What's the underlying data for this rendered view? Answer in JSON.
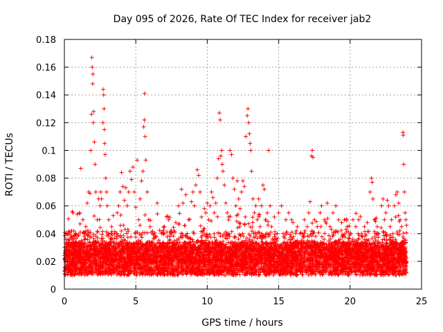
{
  "chart_data": {
    "type": "scatter",
    "title": "Day 095 of 2026, Rate Of TEC Index for receiver jab2",
    "xlabel": "GPS time / hours",
    "ylabel": "ROTI / TECUs",
    "xlim": [
      0,
      25
    ],
    "ylim": [
      0,
      0.18
    ],
    "xticks": [
      "0",
      "5",
      "10",
      "15",
      "20",
      "25"
    ],
    "yticks": [
      "0",
      "0.02",
      "0.04",
      "0.06",
      "0.08",
      "0.1",
      "0.12",
      "0.14",
      "0.16",
      "0.18"
    ],
    "grid": true,
    "marker": "+",
    "marker_color": "#ff0000",
    "legend": "none",
    "series": [
      {
        "points": [
          [
            0.05,
            0.021
          ],
          [
            0.1,
            0.036
          ],
          [
            0.15,
            0.028
          ],
          [
            0.2,
            0.03
          ],
          [
            0.3,
            0.027
          ],
          [
            0.4,
            0.025
          ],
          [
            0.5,
            0.03
          ],
          [
            0.55,
            0.056
          ],
          [
            0.6,
            0.055
          ],
          [
            0.65,
            0.022
          ],
          [
            0.7,
            0.031
          ],
          [
            0.8,
            0.034
          ],
          [
            0.9,
            0.054
          ],
          [
            1.0,
            0.039
          ],
          [
            1.05,
            0.055
          ],
          [
            1.1,
            0.047
          ],
          [
            1.15,
            0.087
          ],
          [
            1.2,
            0.034
          ],
          [
            1.3,
            0.05
          ],
          [
            1.4,
            0.04
          ],
          [
            1.5,
            0.045
          ],
          [
            1.6,
            0.062
          ],
          [
            1.7,
            0.07
          ],
          [
            1.8,
            0.069
          ],
          [
            1.85,
            0.1
          ],
          [
            1.9,
            0.126
          ],
          [
            1.92,
            0.167
          ],
          [
            1.95,
            0.16
          ],
          [
            1.98,
            0.148
          ],
          [
            2.0,
            0.155
          ],
          [
            2.02,
            0.12
          ],
          [
            2.05,
            0.128
          ],
          [
            2.1,
            0.106
          ],
          [
            2.15,
            0.09
          ],
          [
            2.2,
            0.07
          ],
          [
            2.3,
            0.05
          ],
          [
            2.4,
            0.065
          ],
          [
            2.5,
            0.06
          ],
          [
            2.55,
            0.07
          ],
          [
            2.6,
            0.065
          ],
          [
            2.7,
            0.12
          ],
          [
            2.72,
            0.144
          ],
          [
            2.75,
            0.14
          ],
          [
            2.78,
            0.13
          ],
          [
            2.8,
            0.115
          ],
          [
            2.82,
            0.105
          ],
          [
            2.85,
            0.097
          ],
          [
            2.9,
            0.08
          ],
          [
            2.95,
            0.07
          ],
          [
            3.0,
            0.06
          ],
          [
            3.1,
            0.05
          ],
          [
            3.3,
            0.045
          ],
          [
            3.5,
            0.04
          ],
          [
            3.7,
            0.055
          ],
          [
            3.8,
            0.06
          ],
          [
            3.9,
            0.07
          ],
          [
            4.0,
            0.084
          ],
          [
            4.1,
            0.074
          ],
          [
            4.2,
            0.064
          ],
          [
            4.3,
            0.073
          ],
          [
            4.4,
            0.06
          ],
          [
            4.5,
            0.07
          ],
          [
            4.6,
            0.085
          ],
          [
            4.7,
            0.079
          ],
          [
            4.8,
            0.088
          ],
          [
            4.9,
            0.07
          ],
          [
            5.0,
            0.059
          ],
          [
            5.1,
            0.093
          ],
          [
            5.2,
            0.05
          ],
          [
            5.3,
            0.065
          ],
          [
            5.4,
            0.078
          ],
          [
            5.5,
            0.085
          ],
          [
            5.55,
            0.117
          ],
          [
            5.6,
            0.122
          ],
          [
            5.62,
            0.141
          ],
          [
            5.65,
            0.11
          ],
          [
            5.7,
            0.093
          ],
          [
            5.8,
            0.07
          ],
          [
            5.9,
            0.05
          ],
          [
            6.0,
            0.045
          ],
          [
            6.2,
            0.04
          ],
          [
            6.5,
            0.062
          ],
          [
            6.8,
            0.04
          ],
          [
            7.0,
            0.045
          ],
          [
            7.3,
            0.05
          ],
          [
            7.5,
            0.042
          ],
          [
            7.8,
            0.048
          ],
          [
            8.0,
            0.06
          ],
          [
            8.2,
            0.072
          ],
          [
            8.3,
            0.062
          ],
          [
            8.5,
            0.068
          ],
          [
            8.7,
            0.05
          ],
          [
            8.9,
            0.063
          ],
          [
            9.0,
            0.07
          ],
          [
            9.1,
            0.06
          ],
          [
            9.2,
            0.075
          ],
          [
            9.3,
            0.086
          ],
          [
            9.4,
            0.082
          ],
          [
            9.5,
            0.07
          ],
          [
            9.6,
            0.052
          ],
          [
            9.8,
            0.058
          ],
          [
            9.9,
            0.055
          ],
          [
            10.0,
            0.062
          ],
          [
            10.1,
            0.05
          ],
          [
            10.2,
            0.06
          ],
          [
            10.3,
            0.07
          ],
          [
            10.4,
            0.066
          ],
          [
            10.5,
            0.055
          ],
          [
            10.6,
            0.062
          ],
          [
            10.7,
            0.08
          ],
          [
            10.8,
            0.094
          ],
          [
            10.85,
            0.127
          ],
          [
            10.9,
            0.122
          ],
          [
            10.95,
            0.096
          ],
          [
            11.0,
            0.1
          ],
          [
            11.05,
            0.09
          ],
          [
            11.1,
            0.085
          ],
          [
            11.2,
            0.075
          ],
          [
            11.3,
            0.062
          ],
          [
            11.4,
            0.055
          ],
          [
            11.5,
            0.052
          ],
          [
            11.6,
            0.1
          ],
          [
            11.7,
            0.097
          ],
          [
            11.8,
            0.08
          ],
          [
            11.9,
            0.072
          ],
          [
            12.0,
            0.06
          ],
          [
            12.1,
            0.078
          ],
          [
            12.2,
            0.065
          ],
          [
            12.3,
            0.058
          ],
          [
            12.4,
            0.07
          ],
          [
            12.5,
            0.078
          ],
          [
            12.6,
            0.074
          ],
          [
            12.7,
            0.11
          ],
          [
            12.8,
            0.125
          ],
          [
            12.85,
            0.13
          ],
          [
            12.9,
            0.12
          ],
          [
            12.95,
            0.112
          ],
          [
            13.0,
            0.105
          ],
          [
            13.05,
            0.1
          ],
          [
            13.1,
            0.085
          ],
          [
            13.2,
            0.065
          ],
          [
            13.3,
            0.055
          ],
          [
            13.4,
            0.06
          ],
          [
            13.5,
            0.05
          ],
          [
            13.6,
            0.065
          ],
          [
            13.7,
            0.045
          ],
          [
            13.8,
            0.06
          ],
          [
            13.9,
            0.075
          ],
          [
            14.0,
            0.072
          ],
          [
            14.1,
            0.05
          ],
          [
            14.2,
            0.055
          ],
          [
            14.3,
            0.1
          ],
          [
            14.4,
            0.06
          ],
          [
            14.5,
            0.045
          ],
          [
            14.7,
            0.052
          ],
          [
            14.9,
            0.04
          ],
          [
            15.0,
            0.055
          ],
          [
            15.2,
            0.06
          ],
          [
            15.5,
            0.05
          ],
          [
            15.7,
            0.055
          ],
          [
            15.9,
            0.05
          ],
          [
            16.0,
            0.048
          ],
          [
            16.3,
            0.045
          ],
          [
            16.5,
            0.04
          ],
          [
            16.8,
            0.05
          ],
          [
            17.0,
            0.045
          ],
          [
            17.1,
            0.055
          ],
          [
            17.2,
            0.063
          ],
          [
            17.3,
            0.096
          ],
          [
            17.35,
            0.1
          ],
          [
            17.4,
            0.095
          ],
          [
            17.5,
            0.05
          ],
          [
            17.7,
            0.045
          ],
          [
            17.9,
            0.055
          ],
          [
            18.0,
            0.06
          ],
          [
            18.2,
            0.05
          ],
          [
            18.4,
            0.062
          ],
          [
            18.6,
            0.045
          ],
          [
            18.8,
            0.055
          ],
          [
            19.0,
            0.06
          ],
          [
            19.2,
            0.05
          ],
          [
            19.4,
            0.048
          ],
          [
            19.6,
            0.05
          ],
          [
            19.8,
            0.045
          ],
          [
            20.0,
            0.04
          ],
          [
            20.2,
            0.05
          ],
          [
            20.4,
            0.045
          ],
          [
            20.6,
            0.05
          ],
          [
            20.8,
            0.04
          ],
          [
            21.0,
            0.045
          ],
          [
            21.2,
            0.048
          ],
          [
            21.4,
            0.07
          ],
          [
            21.5,
            0.08
          ],
          [
            21.55,
            0.077
          ],
          [
            21.6,
            0.065
          ],
          [
            21.7,
            0.05
          ],
          [
            21.8,
            0.04
          ],
          [
            21.9,
            0.045
          ],
          [
            22.0,
            0.04
          ],
          [
            22.2,
            0.06
          ],
          [
            22.3,
            0.065
          ],
          [
            22.4,
            0.05
          ],
          [
            22.5,
            0.055
          ],
          [
            22.6,
            0.064
          ],
          [
            22.7,
            0.06
          ],
          [
            22.8,
            0.045
          ],
          [
            22.9,
            0.05
          ],
          [
            23.0,
            0.04
          ],
          [
            23.1,
            0.06
          ],
          [
            23.2,
            0.068
          ],
          [
            23.3,
            0.07
          ],
          [
            23.4,
            0.062
          ],
          [
            23.5,
            0.05
          ],
          [
            23.6,
            0.045
          ],
          [
            23.7,
            0.113
          ],
          [
            23.72,
            0.111
          ],
          [
            23.75,
            0.09
          ],
          [
            23.8,
            0.07
          ],
          [
            23.85,
            0.055
          ],
          [
            23.9,
            0.05
          ],
          [
            23.95,
            0.046
          ]
        ]
      }
    ]
  }
}
